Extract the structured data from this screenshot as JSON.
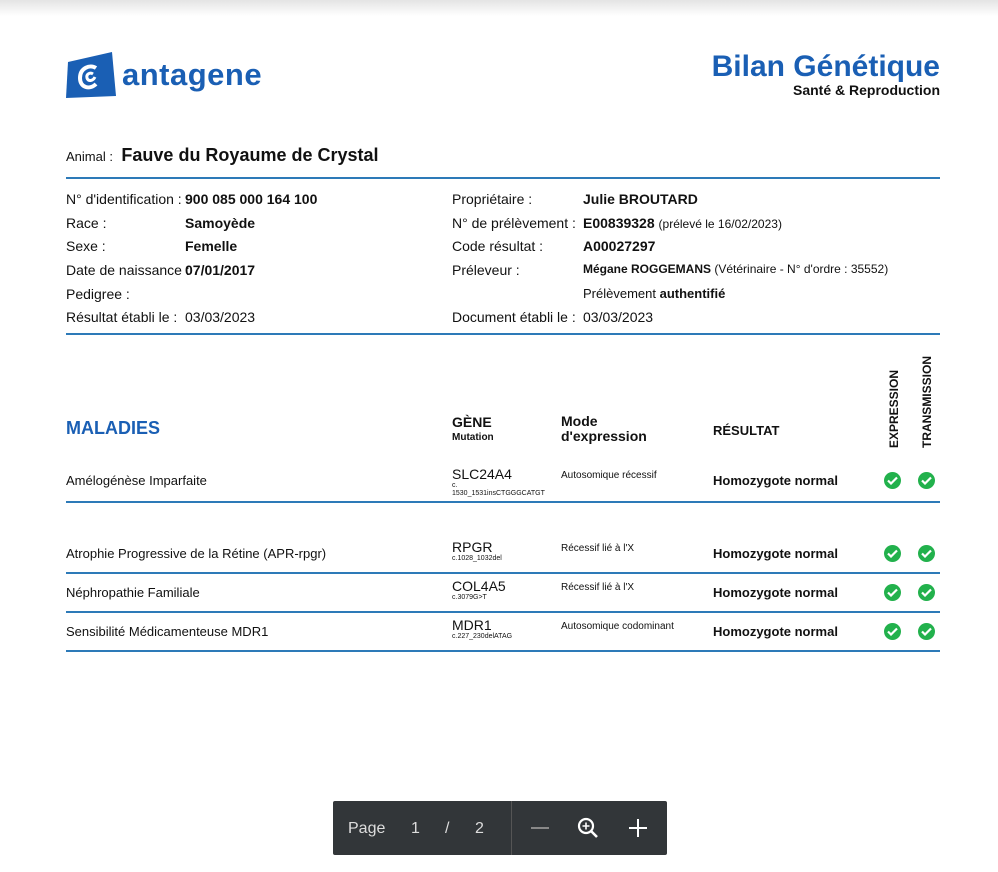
{
  "header": {
    "logo": "antagene",
    "title": "Bilan Génétique",
    "subtitle": "Santé & Reproduction"
  },
  "animal": {
    "label": "Animal :",
    "name": "Fauve du Royaume de Crystal"
  },
  "left_info": [
    {
      "label": "N° d'identification :",
      "value": "900 085 000 164 100",
      "bold": true
    },
    {
      "label": "Race :",
      "value": "Samoyède",
      "bold": true
    },
    {
      "label": "Sexe :",
      "value": "Femelle",
      "bold": true
    },
    {
      "label": "Date de naissance :",
      "value": "07/01/2017",
      "bold": true
    },
    {
      "label": "Pedigree :",
      "value": ""
    },
    {
      "label": "Résultat établi le :",
      "value": "03/03/2023",
      "bold": false
    }
  ],
  "right_info": {
    "owner_label": "Propriétaire :",
    "owner": "Julie BROUTARD",
    "sample_label": "N° de prélèvement :",
    "sample": "E00839328",
    "sample_note": "(prélevé le 16/02/2023)",
    "code_label": "Code résultat :",
    "code": "A00027297",
    "collector_label": "Préleveur :",
    "collector": "Mégane ROGGEMANS",
    "collector_note": "(Vétérinaire - N° d'ordre : 35552)",
    "auth_prefix": "Prélèvement",
    "auth": "authentifié",
    "doc_label": "Document établi le :",
    "doc_date": "03/03/2023"
  },
  "table": {
    "section": "MALADIES",
    "gene": "GÈNE",
    "mutation": "Mutation",
    "mode": "Mode\nd'expression",
    "result": "RÉSULTAT",
    "expression": "EXPRESSION",
    "transmission": "TRANSMISSION",
    "rows": [
      {
        "disease": "Amélogénèse Imparfaite",
        "gene": "SLC24A4",
        "mutation": "c.\n1530_1531insCTGGGCATGT",
        "mode": "Autosomique récessif",
        "result": "Homozygote normal",
        "expression": "ok",
        "transmission": "ok"
      },
      {
        "disease": "Atrophie Progressive de la Rétine (APR-rpgr)",
        "gene": "RPGR",
        "mutation": "c.1028_1032del",
        "mode": "Récessif lié à l'X",
        "result": "Homozygote normal",
        "expression": "ok",
        "transmission": "ok"
      },
      {
        "disease": "Néphropathie Familiale",
        "gene": "COL4A5",
        "mutation": "c.3079G>T",
        "mode": "Récessif lié à l'X",
        "result": "Homozygote normal",
        "expression": "ok",
        "transmission": "ok"
      },
      {
        "disease": "Sensibilité Médicamenteuse MDR1",
        "gene": "MDR1",
        "mutation": "c.227_230delATAG",
        "mode": "Autosomique codominant",
        "result": "Homozygote normal",
        "expression": "ok",
        "transmission": "ok"
      }
    ]
  },
  "colors": {
    "brand": "#1a5fb4",
    "rule": "#2d7ab8",
    "check": "#22b14c"
  },
  "viewer": {
    "page_label": "Page",
    "current": "1",
    "sep": "/",
    "total": "2"
  }
}
